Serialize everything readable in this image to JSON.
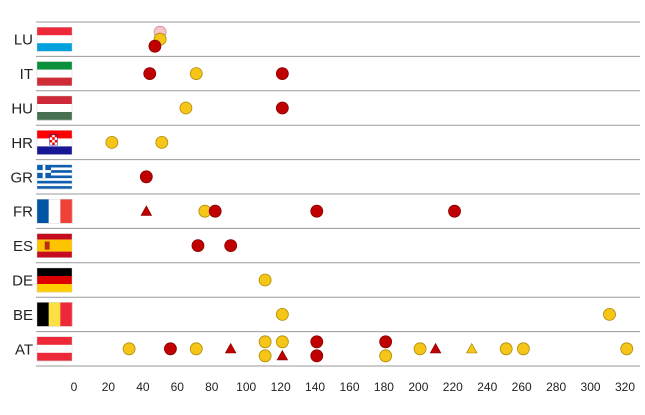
{
  "chart_data": {
    "type": "scatter",
    "title": "",
    "xlabel": "",
    "ylabel": "",
    "xlim": [
      0,
      320
    ],
    "x_ticks": [
      0,
      20,
      40,
      60,
      80,
      100,
      120,
      140,
      160,
      180,
      200,
      220,
      240,
      260,
      280,
      300,
      320
    ],
    "grid": "horizontal row separators",
    "legend": "none",
    "marker_colors": {
      "red": "#c00000",
      "yellow": "#f5c518",
      "pink": "#f6c6c8"
    },
    "rows": [
      {
        "label": "LU",
        "flag": "luxembourg-flag",
        "points": [
          {
            "x": 50,
            "offset": -1,
            "color": "pink",
            "shape": "circle"
          },
          {
            "x": 50,
            "offset": 0,
            "color": "yellow",
            "shape": "circle"
          },
          {
            "x": 47,
            "offset": 1,
            "color": "red",
            "shape": "circle"
          }
        ]
      },
      {
        "label": "IT",
        "flag": "italy-flag",
        "points": [
          {
            "x": 44,
            "offset": 0,
            "color": "red",
            "shape": "circle"
          },
          {
            "x": 71,
            "offset": 0,
            "color": "yellow",
            "shape": "circle"
          },
          {
            "x": 121,
            "offset": 0,
            "color": "red",
            "shape": "circle"
          }
        ]
      },
      {
        "label": "HU",
        "flag": "hungary-flag",
        "points": [
          {
            "x": 65,
            "offset": 0,
            "color": "yellow",
            "shape": "circle"
          },
          {
            "x": 121,
            "offset": 0,
            "color": "red",
            "shape": "circle"
          }
        ]
      },
      {
        "label": "HR",
        "flag": "croatia-flag",
        "points": [
          {
            "x": 22,
            "offset": 0,
            "color": "yellow",
            "shape": "circle"
          },
          {
            "x": 51,
            "offset": 0,
            "color": "yellow",
            "shape": "circle"
          }
        ]
      },
      {
        "label": "GR",
        "flag": "greece-flag",
        "points": [
          {
            "x": 42,
            "offset": 0,
            "color": "red",
            "shape": "circle"
          }
        ]
      },
      {
        "label": "FR",
        "flag": "france-flag",
        "points": [
          {
            "x": 42,
            "offset": 0,
            "color": "red",
            "shape": "triangle"
          },
          {
            "x": 76,
            "offset": 0,
            "color": "yellow",
            "shape": "circle"
          },
          {
            "x": 82,
            "offset": 0,
            "color": "red",
            "shape": "circle"
          },
          {
            "x": 141,
            "offset": 0,
            "color": "red",
            "shape": "circle"
          },
          {
            "x": 221,
            "offset": 0,
            "color": "red",
            "shape": "circle"
          }
        ]
      },
      {
        "label": "ES",
        "flag": "spain-flag",
        "points": [
          {
            "x": 72,
            "offset": 0,
            "color": "red",
            "shape": "circle"
          },
          {
            "x": 91,
            "offset": 0,
            "color": "red",
            "shape": "circle"
          }
        ]
      },
      {
        "label": "DE",
        "flag": "germany-flag",
        "points": [
          {
            "x": 111,
            "offset": 0,
            "color": "yellow",
            "shape": "circle"
          }
        ]
      },
      {
        "label": "BE",
        "flag": "belgium-flag",
        "points": [
          {
            "x": 121,
            "offset": 0,
            "color": "yellow",
            "shape": "circle"
          },
          {
            "x": 311,
            "offset": 0,
            "color": "yellow",
            "shape": "circle"
          }
        ]
      },
      {
        "label": "AT",
        "flag": "austria-flag",
        "points": [
          {
            "x": 32,
            "offset": 0,
            "color": "yellow",
            "shape": "circle"
          },
          {
            "x": 56,
            "offset": 0,
            "color": "red",
            "shape": "circle"
          },
          {
            "x": 71,
            "offset": 0,
            "color": "yellow",
            "shape": "circle"
          },
          {
            "x": 91,
            "offset": 0,
            "color": "red",
            "shape": "triangle"
          },
          {
            "x": 111,
            "offset": -1,
            "color": "yellow",
            "shape": "circle"
          },
          {
            "x": 111,
            "offset": 1,
            "color": "yellow",
            "shape": "circle"
          },
          {
            "x": 121,
            "offset": -1,
            "color": "yellow",
            "shape": "circle"
          },
          {
            "x": 121,
            "offset": 1,
            "color": "red",
            "shape": "triangle"
          },
          {
            "x": 141,
            "offset": -1,
            "color": "red",
            "shape": "circle"
          },
          {
            "x": 141,
            "offset": 1,
            "color": "red",
            "shape": "circle"
          },
          {
            "x": 181,
            "offset": -1,
            "color": "red",
            "shape": "circle"
          },
          {
            "x": 181,
            "offset": 1,
            "color": "yellow",
            "shape": "circle"
          },
          {
            "x": 201,
            "offset": 0,
            "color": "yellow",
            "shape": "circle"
          },
          {
            "x": 210,
            "offset": 0,
            "color": "red",
            "shape": "triangle"
          },
          {
            "x": 231,
            "offset": 0,
            "color": "yellow",
            "shape": "triangle"
          },
          {
            "x": 251,
            "offset": 0,
            "color": "yellow",
            "shape": "circle"
          },
          {
            "x": 261,
            "offset": 0,
            "color": "yellow",
            "shape": "circle"
          },
          {
            "x": 321,
            "offset": 0,
            "color": "yellow",
            "shape": "circle"
          }
        ]
      }
    ]
  }
}
